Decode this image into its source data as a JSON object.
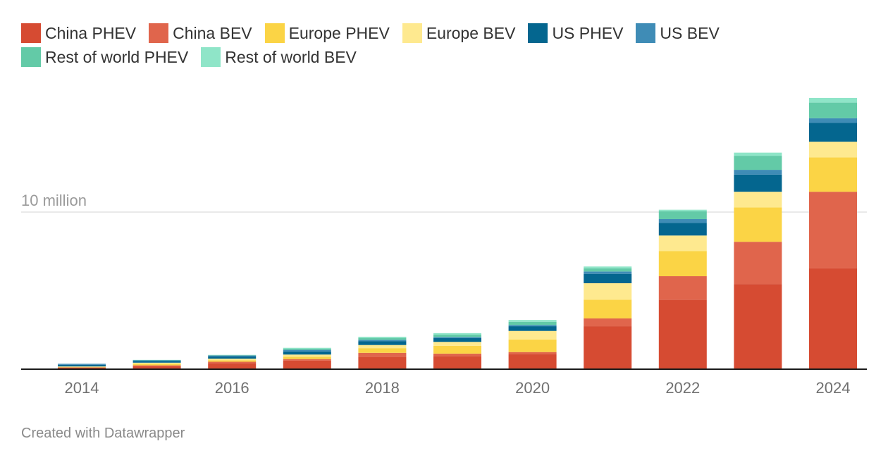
{
  "chart_data": {
    "type": "bar",
    "stacked": true,
    "title": "",
    "xlabel": "",
    "ylabel": "",
    "ylim": [
      0,
      17.5
    ],
    "y_gridlines": [
      {
        "value": 10,
        "label": "10 million"
      }
    ],
    "legend_position": "top",
    "categories": [
      "2014",
      "2015",
      "2016",
      "2017",
      "2018",
      "2019",
      "2020",
      "2021",
      "2022",
      "2023",
      "2024"
    ],
    "x_tick_labels": [
      "2014",
      "2016",
      "2018",
      "2020",
      "2022",
      "2024"
    ],
    "series": [
      {
        "name": "China PHEV",
        "color": "#d64b32",
        "values": [
          0.05,
          0.15,
          0.35,
          0.5,
          0.75,
          0.8,
          0.9,
          2.7,
          4.4,
          5.4,
          6.4
        ]
      },
      {
        "name": "China BEV",
        "color": "#e0654c",
        "values": [
          0.02,
          0.05,
          0.08,
          0.1,
          0.25,
          0.15,
          0.15,
          0.5,
          1.5,
          2.7,
          4.9
        ]
      },
      {
        "name": "Europe PHEV",
        "color": "#fbd445",
        "values": [
          0.03,
          0.1,
          0.1,
          0.15,
          0.3,
          0.5,
          0.8,
          1.2,
          1.6,
          2.2,
          2.2
        ]
      },
      {
        "name": "Europe BEV",
        "color": "#fee98f",
        "values": [
          0.03,
          0.07,
          0.1,
          0.14,
          0.2,
          0.25,
          0.55,
          1.05,
          1.0,
          1.0,
          1.0
        ]
      },
      {
        "name": "US PHEV",
        "color": "#04668f",
        "values": [
          0.1,
          0.1,
          0.15,
          0.2,
          0.25,
          0.25,
          0.3,
          0.6,
          0.8,
          1.1,
          1.2
        ]
      },
      {
        "name": "US BEV",
        "color": "#3f8cb6",
        "values": [
          0.07,
          0.05,
          0.05,
          0.1,
          0.08,
          0.06,
          0.08,
          0.15,
          0.25,
          0.3,
          0.3
        ]
      },
      {
        "name": "Rest of world PHEV",
        "color": "#63caa7",
        "values": [
          0.0,
          0.02,
          0.02,
          0.07,
          0.12,
          0.15,
          0.2,
          0.2,
          0.5,
          0.9,
          1.0
        ]
      },
      {
        "name": "Rest of world BEV",
        "color": "#8fe5c8",
        "values": [
          0.0,
          0.01,
          0.02,
          0.06,
          0.08,
          0.1,
          0.12,
          0.12,
          0.1,
          0.2,
          0.3
        ]
      }
    ]
  },
  "footer": {
    "credit": "Created with Datawrapper"
  }
}
